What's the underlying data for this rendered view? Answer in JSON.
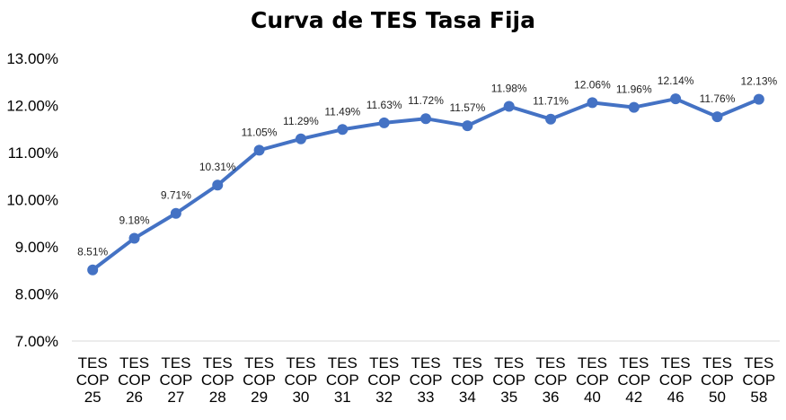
{
  "chart_data": {
    "type": "line",
    "title": "Curva de TES Tasa Fija",
    "xlabel": "",
    "ylabel": "",
    "ylim": [
      7.0,
      13.0
    ],
    "yticks": [
      "7.00%",
      "8.00%",
      "9.00%",
      "10.00%",
      "11.00%",
      "12.00%",
      "13.00%"
    ],
    "grid": false,
    "legend": "none",
    "line_color": "#4472C4",
    "categories": [
      [
        "TES",
        "COP",
        "25"
      ],
      [
        "TES",
        "COP",
        "26"
      ],
      [
        "TES",
        "COP",
        "27"
      ],
      [
        "TES",
        "COP",
        "28"
      ],
      [
        "TES",
        "COP",
        "29"
      ],
      [
        "TES",
        "COP",
        "30"
      ],
      [
        "TES",
        "COP",
        "31"
      ],
      [
        "TES",
        "COP",
        "32"
      ],
      [
        "TES",
        "COP",
        "33"
      ],
      [
        "TES",
        "COP",
        "34"
      ],
      [
        "TES",
        "COP",
        "35"
      ],
      [
        "TES",
        "COP",
        "36"
      ],
      [
        "TES",
        "COP",
        "40"
      ],
      [
        "TES",
        "COP",
        "42"
      ],
      [
        "TES",
        "COP",
        "46"
      ],
      [
        "TES",
        "COP",
        "50"
      ],
      [
        "TES",
        "COP",
        "58"
      ]
    ],
    "values": [
      8.51,
      9.18,
      9.71,
      10.31,
      11.05,
      11.29,
      11.49,
      11.63,
      11.72,
      11.57,
      11.98,
      11.71,
      12.06,
      11.96,
      12.14,
      11.76,
      12.13
    ],
    "data_labels": [
      "8.51%",
      "9.18%",
      "9.71%",
      "10.31%",
      "11.05%",
      "11.29%",
      "11.49%",
      "11.63%",
      "11.72%",
      "11.57%",
      "11.98%",
      "11.71%",
      "12.06%",
      "11.96%",
      "12.14%",
      "11.76%",
      "12.13%"
    ]
  }
}
